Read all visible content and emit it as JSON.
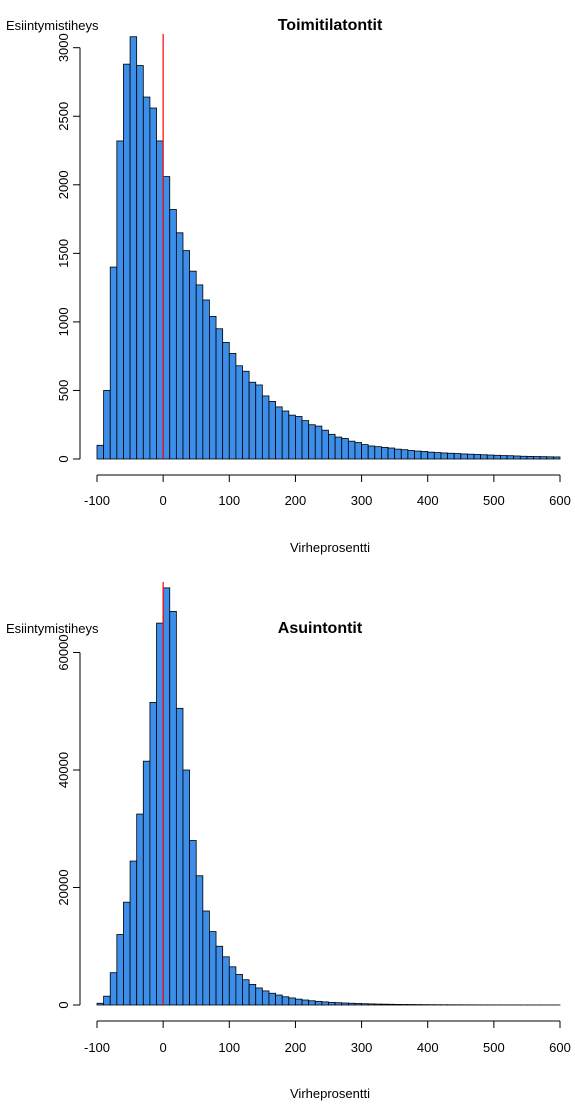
{
  "chart_data": [
    {
      "type": "bar",
      "title": "Toimitilatontit",
      "xlabel": "Virheprosentti",
      "ylabel": "Esiintymistiheys",
      "xlim": [
        -100,
        600
      ],
      "ylim": [
        0,
        3100
      ],
      "bin_width": 10,
      "bin_start": -100,
      "xticks": [
        -100,
        0,
        100,
        200,
        300,
        400,
        500,
        600
      ],
      "yticks": [
        0,
        500,
        1000,
        1500,
        2000,
        2500,
        3000
      ],
      "values": [
        100,
        500,
        1400,
        2320,
        2880,
        3080,
        2870,
        2640,
        2560,
        2320,
        2060,
        1820,
        1650,
        1520,
        1370,
        1270,
        1160,
        1040,
        950,
        850,
        770,
        680,
        640,
        560,
        540,
        460,
        420,
        380,
        350,
        320,
        310,
        280,
        250,
        240,
        210,
        180,
        160,
        150,
        130,
        120,
        105,
        95,
        90,
        85,
        80,
        72,
        68,
        62,
        58,
        55,
        50,
        47,
        44,
        42,
        40,
        37,
        35,
        33,
        31,
        29,
        27,
        25,
        24,
        22,
        20,
        19,
        18,
        17,
        16,
        15
      ],
      "bar_color": "#3C8EE8",
      "reference_line": {
        "x": 0,
        "color": "#FF0000"
      }
    },
    {
      "type": "bar",
      "title": "Asuintontit",
      "xlabel": "Virheprosentti",
      "ylabel": "Esiintymistiheys",
      "xlim": [
        -100,
        600
      ],
      "ylim": [
        0,
        72000
      ],
      "bin_width": 10,
      "bin_start": -100,
      "xticks": [
        -100,
        0,
        100,
        200,
        300,
        400,
        500,
        600
      ],
      "yticks": [
        0,
        20000,
        40000,
        60000
      ],
      "values": [
        300,
        1500,
        5500,
        12000,
        17500,
        24500,
        32500,
        41500,
        51500,
        65000,
        71000,
        67000,
        50500,
        40000,
        28000,
        22000,
        16000,
        12500,
        10000,
        8200,
        6500,
        5200,
        4300,
        3500,
        2900,
        2400,
        2000,
        1700,
        1400,
        1200,
        1000,
        850,
        720,
        620,
        530,
        450,
        390,
        340,
        300,
        260,
        220,
        190,
        160,
        140,
        120,
        100,
        90,
        80,
        70,
        60,
        50,
        45,
        40,
        35,
        30,
        27,
        24,
        21,
        18,
        16,
        14,
        12,
        11,
        10,
        9,
        8,
        7,
        6,
        5,
        5
      ],
      "bar_color": "#3C8EE8",
      "reference_line": {
        "x": 0,
        "color": "#FF0000"
      }
    }
  ]
}
